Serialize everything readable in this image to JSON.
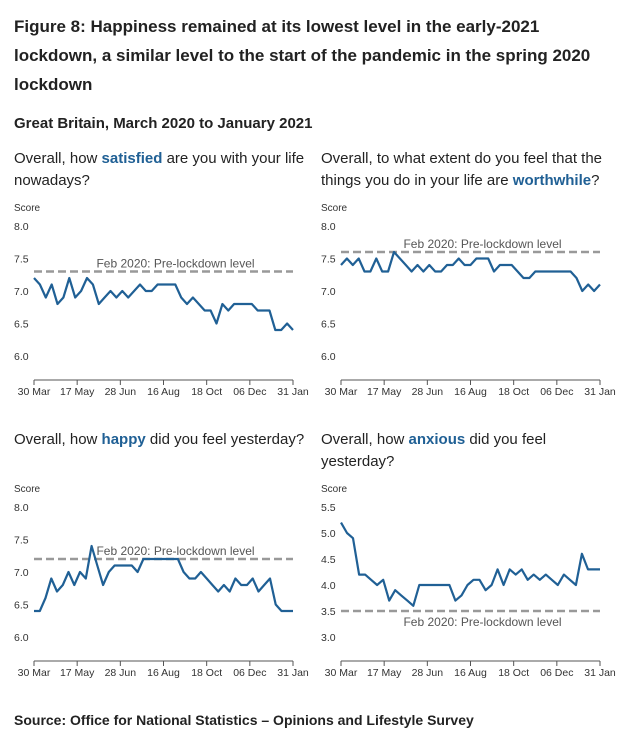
{
  "figure": {
    "title": "Figure 8: Happiness remained at its lowest level in the early-2021 lockdown, a similar level to the start of the pandemic in the spring 2020 lockdown",
    "subtitle": "Great Britain, March 2020 to January 2021",
    "source": "Source: Office for National Statistics – Opinions and Lifestyle Survey"
  },
  "colors": {
    "line": "#206095",
    "reference": "#999999",
    "keyword": "#206095"
  },
  "chart_data": [
    {
      "type": "line",
      "question_before": "Overall, how ",
      "keyword": "satisfied",
      "question_after": " are you with your life nowadays?",
      "unit_label": "Score",
      "ylim": [
        6.0,
        8.0
      ],
      "yticks": [
        "8.0",
        "7.5",
        "7.0",
        "6.5",
        "6.0"
      ],
      "xticks": [
        "30 Mar",
        "17 May",
        "28 Jun",
        "16 Aug",
        "18 Oct",
        "06 Dec",
        "31 Jan"
      ],
      "reference": {
        "value": 7.3,
        "label": "Feb 2020: Pre-lockdown level"
      },
      "series": [
        {
          "values": [
            7.2,
            7.1,
            6.9,
            7.1,
            6.8,
            6.9,
            7.2,
            6.9,
            7.0,
            7.2,
            7.1,
            6.8,
            6.9,
            7.0,
            6.9,
            7.0,
            6.9,
            7.0,
            7.1,
            7.0,
            7.0,
            7.1,
            7.1,
            7.1,
            7.1,
            6.9,
            6.8,
            6.9,
            6.8,
            6.7,
            6.7,
            6.5,
            6.8,
            6.7,
            6.8,
            6.8,
            6.8,
            6.8,
            6.7,
            6.7,
            6.7,
            6.4,
            6.4,
            6.5,
            6.4
          ]
        }
      ]
    },
    {
      "type": "line",
      "question_before": "Overall, to what extent do you feel that the things you do in your life are ",
      "keyword": "worthwhile",
      "question_after": "?",
      "unit_label": "Score",
      "ylim": [
        6.0,
        8.0
      ],
      "yticks": [
        "8.0",
        "7.5",
        "7.0",
        "6.5",
        "6.0"
      ],
      "xticks": [
        "30 Mar",
        "17 May",
        "28 Jun",
        "16 Aug",
        "18 Oct",
        "06 Dec",
        "31 Jan"
      ],
      "reference": {
        "value": 7.6,
        "label": "Feb 2020: Pre-lockdown level"
      },
      "series": [
        {
          "values": [
            7.4,
            7.5,
            7.4,
            7.5,
            7.3,
            7.3,
            7.5,
            7.3,
            7.3,
            7.6,
            7.5,
            7.4,
            7.3,
            7.4,
            7.3,
            7.4,
            7.3,
            7.3,
            7.4,
            7.4,
            7.5,
            7.4,
            7.4,
            7.5,
            7.5,
            7.5,
            7.3,
            7.4,
            7.4,
            7.4,
            7.3,
            7.2,
            7.2,
            7.3,
            7.3,
            7.3,
            7.3,
            7.3,
            7.3,
            7.3,
            7.2,
            7.0,
            7.1,
            7.0,
            7.1
          ]
        }
      ]
    },
    {
      "type": "line",
      "question_before": "Overall, how ",
      "keyword": "happy",
      "question_after": " did you feel yesterday?",
      "unit_label": "Score",
      "ylim": [
        6.0,
        8.0
      ],
      "yticks": [
        "8.0",
        "7.5",
        "7.0",
        "6.5",
        "6.0"
      ],
      "xticks": [
        "30 Mar",
        "17 May",
        "28 Jun",
        "16 Aug",
        "18 Oct",
        "06 Dec",
        "31 Jan"
      ],
      "reference": {
        "value": 7.2,
        "label": "Feb 2020: Pre-lockdown level"
      },
      "series": [
        {
          "values": [
            6.4,
            6.4,
            6.6,
            6.9,
            6.7,
            6.8,
            7.0,
            6.8,
            7.0,
            6.9,
            7.4,
            7.1,
            6.8,
            7.0,
            7.1,
            7.1,
            7.1,
            7.1,
            7.0,
            7.2,
            7.2,
            7.2,
            7.2,
            7.2,
            7.2,
            7.2,
            7.0,
            6.9,
            6.9,
            7.0,
            6.9,
            6.8,
            6.7,
            6.8,
            6.7,
            6.9,
            6.8,
            6.8,
            6.9,
            6.7,
            6.8,
            6.9,
            6.5,
            6.4,
            6.4,
            6.4
          ]
        }
      ]
    },
    {
      "type": "line",
      "question_before": "Overall, how ",
      "keyword": "anxious",
      "question_after": " did you feel yesterday?",
      "unit_label": "Score",
      "ylim": [
        3.0,
        5.5
      ],
      "yticks": [
        "5.5",
        "5.0",
        "4.5",
        "4.0",
        "3.5",
        "3.0"
      ],
      "xticks": [
        "30 Mar",
        "17 May",
        "28 Jun",
        "16 Aug",
        "18 Oct",
        "06 Dec",
        "31 Jan"
      ],
      "reference": {
        "value": 3.5,
        "label": "Feb 2020: Pre-lockdown level"
      },
      "series": [
        {
          "values": [
            5.2,
            5.0,
            4.9,
            4.2,
            4.2,
            4.1,
            4.0,
            4.1,
            3.7,
            3.9,
            3.8,
            3.7,
            3.6,
            4.0,
            4.0,
            4.0,
            4.0,
            4.0,
            4.0,
            3.7,
            3.8,
            4.0,
            4.1,
            4.1,
            3.9,
            4.0,
            4.3,
            4.0,
            4.3,
            4.2,
            4.3,
            4.1,
            4.2,
            4.1,
            4.2,
            4.1,
            4.0,
            4.2,
            4.1,
            4.0,
            4.6,
            4.3,
            4.3,
            4.3
          ]
        }
      ]
    }
  ]
}
